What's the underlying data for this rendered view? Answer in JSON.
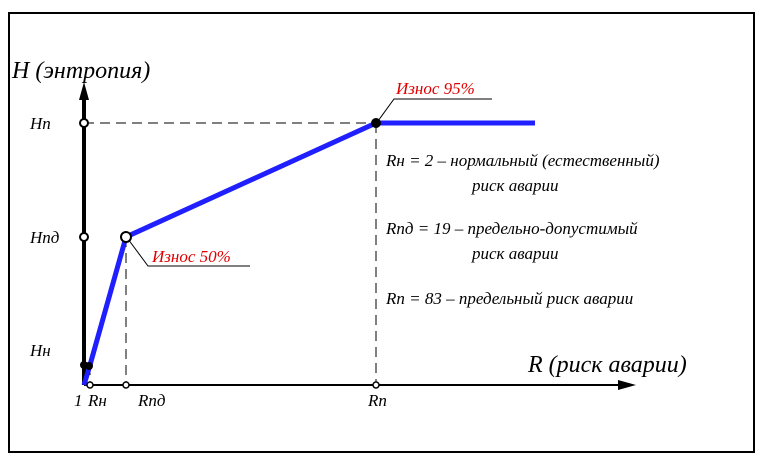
{
  "axes": {
    "y_label": "H (энтропия)",
    "x_label": "R (риск аварии)",
    "y_ticks": [
      "Hп",
      "Hпд",
      "Hн"
    ],
    "x_ticks": [
      "1",
      "Rн",
      "Rпд",
      "Rп"
    ]
  },
  "annotations": {
    "wear_95": "Износ 95%",
    "wear_50": "Износ 50%"
  },
  "legend": {
    "rn_line1": "Rн = 2 – нормальный (естественный)",
    "rn_line2": "риск аварии",
    "rpd_line1": "Rпд = 19 – предельно-допустимый",
    "rpd_line2": "риск аварии",
    "rp_line1": "Rп = 83 – предельный риск аварии"
  },
  "colors": {
    "curve": "#1f1fff",
    "annotation": "#e00000",
    "axis": "#000000"
  }
}
